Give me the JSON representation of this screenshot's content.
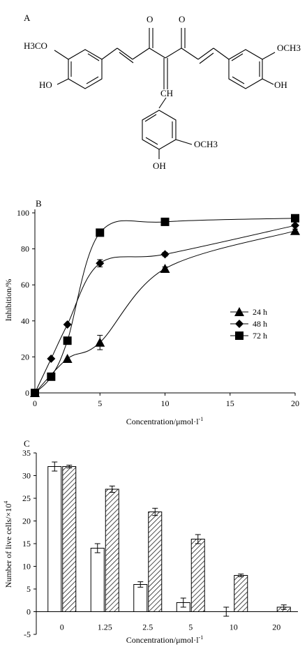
{
  "panel_labels": {
    "a": "A",
    "b": "B",
    "c": "C"
  },
  "structure": {
    "carbonyl_1": "O",
    "carbonyl_2": "O",
    "methoxy_left": "H3CO",
    "methoxy_right": "OCH3",
    "methoxy_bottom": "OCH3",
    "hydroxy_left": "HO",
    "hydroxy_right": "OH",
    "hydroxy_bottom": "OH",
    "methine": "CH"
  },
  "chart_data": [
    {
      "type": "line",
      "panel": "B",
      "xlabel": "Concentration/μmol·l",
      "xlabel_sup": "-1",
      "ylabel": "Inhibition/%",
      "xlim": [
        0,
        20
      ],
      "ylim": [
        0,
        100
      ],
      "xticks": [
        0,
        5,
        10,
        15,
        20
      ],
      "yticks": [
        0,
        20,
        40,
        60,
        80,
        100
      ],
      "legend_position": "center-right",
      "series": [
        {
          "name": "24 h",
          "marker": "triangle",
          "x": [
            0,
            2.5,
            5,
            10,
            20
          ],
          "y": [
            0,
            19,
            28,
            69,
            90
          ],
          "err": [
            0,
            0,
            4,
            1,
            1
          ]
        },
        {
          "name": "48 h",
          "marker": "diamond",
          "x": [
            0,
            1.25,
            2.5,
            5,
            10,
            20
          ],
          "y": [
            0,
            19,
            38,
            72,
            77,
            93
          ],
          "err": [
            0,
            0,
            0,
            2,
            1,
            0
          ]
        },
        {
          "name": "72 h",
          "marker": "square",
          "x": [
            0,
            1.25,
            2.5,
            5,
            10,
            20
          ],
          "y": [
            0,
            9,
            29,
            89,
            95,
            97
          ],
          "err": [
            0,
            0,
            0,
            0,
            0,
            0
          ]
        }
      ]
    },
    {
      "type": "bar",
      "panel": "C",
      "xlabel": "Concentration/μmol·l",
      "xlabel_sup": "-1",
      "ylabel": "Number of live cells/×10",
      "ylabel_sup": "4",
      "categories": [
        "0",
        "1.25",
        "2.5",
        "5",
        "10",
        "20"
      ],
      "ylim": [
        -5,
        35
      ],
      "yticks": [
        -5,
        0,
        5,
        10,
        15,
        20,
        25,
        30,
        35
      ],
      "series": [
        {
          "fill": "open",
          "values": [
            32,
            14,
            6,
            2,
            0,
            0
          ],
          "err": [
            1,
            1,
            0.6,
            1,
            1,
            0
          ]
        },
        {
          "fill": "hatched",
          "values": [
            32,
            27,
            22,
            16,
            8,
            1
          ],
          "err": [
            0.3,
            0.7,
            0.8,
            1,
            0.3,
            0.5
          ]
        }
      ]
    }
  ]
}
